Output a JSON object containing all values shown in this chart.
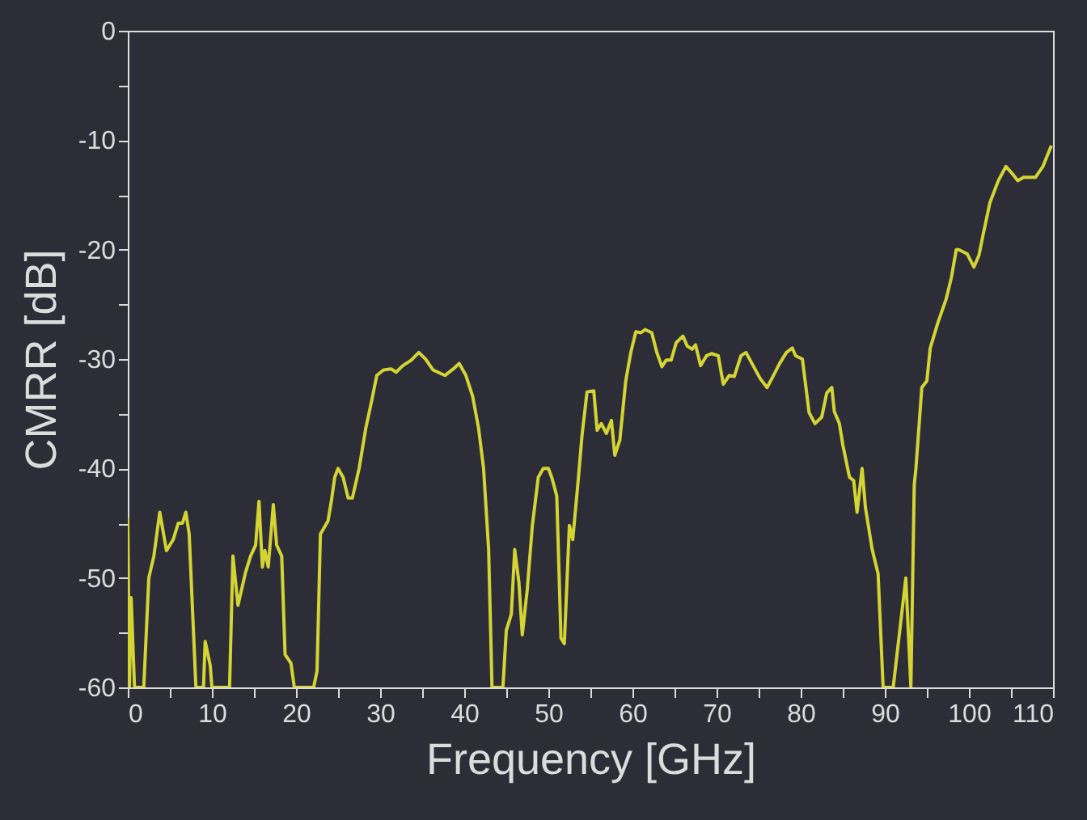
{
  "chart_data": {
    "type": "line",
    "xlabel": "Frequency  [GHz]",
    "ylabel": "CMRR  [dB]",
    "xlim": [
      0,
      110
    ],
    "ylim": [
      -60,
      0
    ],
    "xticks": [
      0,
      {
        "value": 5,
        "label": null
      },
      10,
      {
        "value": 15,
        "label": null
      },
      20,
      {
        "value": 25,
        "label": null
      },
      30,
      {
        "value": 35,
        "label": null
      },
      40,
      {
        "value": 45,
        "label": null
      },
      50,
      {
        "value": 55,
        "label": null
      },
      60,
      {
        "value": 65,
        "label": null
      },
      70,
      {
        "value": 75,
        "label": null
      },
      80,
      {
        "value": 85,
        "label": null
      },
      90,
      {
        "value": 95,
        "label": null
      },
      100,
      {
        "value": 105,
        "label": null
      },
      110
    ],
    "yticks": [
      -60,
      {
        "value": -55,
        "label": null
      },
      -50,
      {
        "value": -45,
        "label": null
      },
      -40,
      {
        "value": -35,
        "label": null
      },
      -30,
      {
        "value": -25,
        "label": null
      },
      -20,
      {
        "value": -15,
        "label": null
      },
      -10,
      {
        "value": -5,
        "label": null
      },
      0
    ],
    "grid": false,
    "marker": "none",
    "line_style": "solid",
    "x": [
      0,
      0.2,
      0.4,
      0.8,
      1.9,
      2.5,
      3.1,
      3.8,
      4.6,
      5.4,
      6.0,
      6.5,
      6.9,
      7.3,
      8.1,
      9.0,
      9.2,
      9.8,
      10.0,
      12.1,
      12.5,
      13.1,
      14.0,
      14.6,
      15.2,
      15.6,
      16.0,
      16.3,
      16.7,
      17.3,
      17.7,
      18.3,
      18.7,
      19.4,
      19.8,
      22.1,
      22.5,
      22.9,
      23.8,
      24.2,
      24.6,
      25.0,
      25.6,
      26.2,
      26.7,
      27.5,
      28.3,
      29.0,
      29.6,
      30.4,
      31.3,
      31.9,
      32.7,
      33.7,
      34.6,
      35.4,
      36.3,
      37.7,
      38.7,
      39.4,
      40.2,
      41.0,
      41.7,
      42.3,
      42.9,
      43.3,
      44.6,
      45.0,
      45.6,
      46.0,
      46.5,
      46.9,
      47.5,
      48.1,
      48.8,
      49.4,
      50.0,
      50.4,
      51.0,
      51.5,
      51.9,
      52.5,
      52.9,
      53.5,
      54.0,
      54.6,
      55.4,
      55.8,
      56.3,
      56.9,
      57.5,
      57.9,
      58.5,
      59.2,
      59.8,
      60.4,
      61.0,
      61.5,
      62.3,
      62.9,
      63.5,
      64.0,
      64.6,
      65.2,
      66.0,
      66.5,
      67.1,
      67.5,
      68.1,
      68.8,
      69.4,
      70.2,
      70.8,
      71.5,
      72.1,
      72.9,
      73.5,
      74.2,
      75.2,
      76.0,
      76.7,
      77.5,
      78.3,
      79.0,
      79.4,
      80.2,
      81.0,
      81.7,
      82.5,
      83.1,
      83.7,
      84.0,
      84.6,
      85.0,
      85.8,
      86.3,
      86.7,
      87.3,
      87.7,
      88.5,
      89.2,
      89.8,
      91.0,
      92.5,
      93.1,
      93.5,
      93.7,
      94.4,
      95.0,
      95.4,
      96.3,
      97.3,
      97.9,
      98.5,
      98.8,
      99.8,
      100.6,
      101.2,
      101.7,
      102.5,
      103.5,
      104.4,
      105.2,
      105.8,
      106.5,
      107.9,
      108.8,
      109.8
    ],
    "series": [
      {
        "color": "#d4d433",
        "values": [
          -44.5,
          -60,
          -51.8,
          -60,
          -60,
          -50,
          -48,
          -44,
          -47.5,
          -46.5,
          -45,
          -45,
          -44,
          -46,
          -60,
          -60,
          -55.8,
          -58,
          -60,
          -60,
          -48,
          -52.5,
          -49.5,
          -48,
          -47,
          -43,
          -49,
          -47.5,
          -49,
          -43.3,
          -47,
          -48,
          -57,
          -57.8,
          -60,
          -60,
          -58.5,
          -46,
          -44.8,
          -43,
          -40.8,
          -40,
          -40.8,
          -42.7,
          -42.7,
          -40,
          -36.3,
          -33.8,
          -31.5,
          -31,
          -30.9,
          -31.2,
          -30.6,
          -30.1,
          -29.4,
          -30,
          -31,
          -31.5,
          -30.9,
          -30.4,
          -31.5,
          -33.4,
          -36.3,
          -40,
          -47.4,
          -60,
          -60,
          -54.8,
          -53.3,
          -47.4,
          -50.4,
          -55.2,
          -51,
          -45.2,
          -40.8,
          -40,
          -40,
          -40.8,
          -42.5,
          -55.5,
          -56,
          -45.2,
          -46.5,
          -41.5,
          -37,
          -33,
          -32.9,
          -36.5,
          -35.9,
          -36.8,
          -35.6,
          -38.8,
          -37.4,
          -32,
          -29.4,
          -27.5,
          -27.6,
          -27.3,
          -27.6,
          -29.4,
          -30.7,
          -30.1,
          -30.1,
          -28.5,
          -27.9,
          -28.8,
          -29.1,
          -28.7,
          -30.6,
          -29.7,
          -29.5,
          -29.7,
          -32.3,
          -31.5,
          -31.6,
          -29.7,
          -29.4,
          -30.4,
          -31.8,
          -32.6,
          -31.6,
          -30.4,
          -29.4,
          -29,
          -29.7,
          -30,
          -34.9,
          -35.9,
          -35.3,
          -33.1,
          -32.6,
          -34.8,
          -35.9,
          -37.8,
          -40.8,
          -41.1,
          -44,
          -40,
          -43.6,
          -47.4,
          -49.6,
          -60,
          -60,
          -50,
          -60,
          -41.5,
          -40,
          -32.6,
          -32,
          -29,
          -26.7,
          -24.5,
          -22.6,
          -20,
          -20,
          -20.4,
          -21.6,
          -20.5,
          -18.6,
          -15.7,
          -13.7,
          -12.4,
          -13.1,
          -13.7,
          -13.4,
          -13.4,
          -12.4,
          -10.5
        ]
      }
    ]
  }
}
